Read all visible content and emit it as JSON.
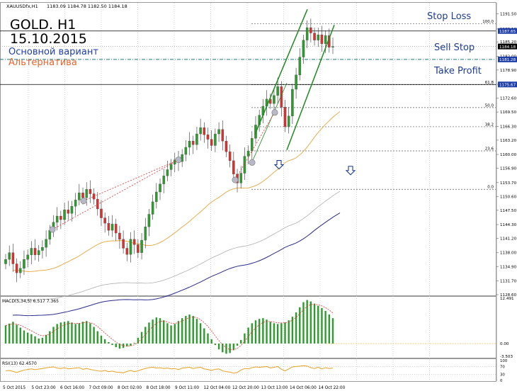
{
  "symbol_bar": {
    "symbol": "XAUUSDfx,H1",
    "ohlc": "1183.09 1184.78 1182.50 1184.18"
  },
  "overlay": {
    "title": "GOLD. H1",
    "date": "15.10.2015",
    "main_variant": "Основной вариант",
    "alternative": "Альтернатива",
    "stop_loss": "Stop Loss",
    "sell_stop": "Sell Stop",
    "take_profit": "Take Profit"
  },
  "colors": {
    "bull": "#2e9b2e",
    "bear": "#d93030",
    "channel": "#1f8a1f",
    "ma_fast": "#e8a53a",
    "ma_slow": "#2b2b8c",
    "ma_mid": "#b0b0b0",
    "main_variant": "#1f3fa8",
    "alternative": "#e8632b",
    "label_blue": "#1d3d8f",
    "macd_signal": "#e03030",
    "rsi_line": "#e8a020"
  },
  "chart_data": {
    "type": "candlestick",
    "price_axis": {
      "ylim": [
        1128.6,
        1193.0
      ],
      "ticks": [
        "1191.50",
        "1188.10",
        "1185.20",
        "1182.00",
        "1178.90",
        "1175.70",
        "1172.60",
        "1169.50",
        "1166.30",
        "1163.20",
        "1160.00",
        "1156.90",
        "1153.70",
        "1150.60",
        "1147.50",
        "1144.30",
        "1141.20",
        "1138.00",
        "1134.90",
        "1131.70",
        "1128.60"
      ],
      "markers": [
        {
          "label": "1187.65",
          "value": 1187.65
        },
        {
          "label": "1184.18",
          "value": 1184.18
        },
        {
          "label": "1181.28",
          "value": 1181.28
        },
        {
          "label": "1175.67",
          "value": 1175.67
        }
      ]
    },
    "time_axis": {
      "labels": [
        "5 Oct 2015",
        "5 Oct 23:00",
        "6 Oct 16:00",
        "7 Oct 09:00",
        "8 Oct 02:00",
        "8 Oct 18:00",
        "9 Oct 11:00",
        "12 Oct 04:00",
        "12 Oct 20:00",
        "13 Oct 13:00",
        "14 Oct 06:00",
        "14 Oct 22:00"
      ]
    },
    "closes": [
      1136.5,
      1138.0,
      1135.5,
      1133.5,
      1134.5,
      1136.5,
      1137.5,
      1139.0,
      1137.5,
      1138.5,
      1139.2,
      1141.0,
      1143.0,
      1144.8,
      1146.2,
      1145.4,
      1147.6,
      1146.8,
      1148.4,
      1149.8,
      1151.4,
      1150.3,
      1152.2,
      1151.2,
      1150.0,
      1147.8,
      1145.8,
      1144.6,
      1143.0,
      1144.4,
      1142.4,
      1141.0,
      1139.0,
      1137.6,
      1141.0,
      1139.8,
      1138.0,
      1140.8,
      1143.8,
      1146.6,
      1149.4,
      1151.6,
      1153.4,
      1155.2,
      1156.6,
      1157.8,
      1158.8,
      1158.4,
      1160.0,
      1161.6,
      1163.0,
      1162.2,
      1164.6,
      1166.0,
      1164.4,
      1163.4,
      1162.0,
      1164.6,
      1165.6,
      1163.0,
      1160.6,
      1158.6,
      1155.6,
      1153.6,
      1155.8,
      1159.6,
      1160.8,
      1163.6,
      1166.6,
      1168.8,
      1170.8,
      1172.4,
      1171.4,
      1173.2,
      1175.2,
      1170.6,
      1166.2,
      1168.6,
      1174.6,
      1177.8,
      1181.8,
      1185.6,
      1188.4,
      1187.2,
      1185.6,
      1186.8,
      1184.8,
      1186.6,
      1184.0,
      1184.18
    ],
    "fibonacci": [
      {
        "label": "100.0",
        "value": 1189.3
      },
      {
        "label": "61.8",
        "value": 1175.6
      },
      {
        "label": "50.0",
        "value": 1170.5
      },
      {
        "label": "38.2",
        "value": 1166.2
      },
      {
        "label": "23.6",
        "value": 1160.8
      },
      {
        "label": "0.0",
        "value": 1152.2
      }
    ],
    "macd": {
      "label": "MACD(5,34,5) 6.517 7.365",
      "ticks": [
        "12.491",
        "0.00",
        "-3.503"
      ],
      "ylim": [
        -3.503,
        12.491
      ],
      "values": [
        5,
        5.5,
        6,
        5.2,
        4.4,
        3.6,
        3,
        2.6,
        2,
        1.4,
        1.6,
        2.4,
        3.4,
        4.6,
        5.4,
        5.8,
        6,
        6.2,
        5.8,
        5.4,
        5.6,
        6,
        6.2,
        5.6,
        4.6,
        3.4,
        2.2,
        1.2,
        0.4,
        -0.4,
        -1,
        -1.4,
        -1.2,
        -0.8,
        -0.6,
        0.2,
        1.6,
        3.2,
        4.6,
        5.8,
        6.6,
        7.2,
        7,
        6.4,
        5.6,
        5,
        5.4,
        6.2,
        7,
        7.6,
        8,
        7.6,
        6.8,
        5.6,
        4.2,
        2.8,
        1.2,
        -0.4,
        -1.6,
        -2.4,
        -2.8,
        -2.6,
        -1.8,
        -0.6,
        1,
        2.8,
        4.4,
        5.6,
        6.4,
        6.8,
        7,
        6.6,
        6,
        5.6,
        5.4,
        5.6,
        5.8,
        6.4,
        7.4,
        8.6,
        10,
        11.4,
        12,
        11.6,
        11,
        10.4,
        9.8,
        9,
        8,
        7
      ]
    },
    "rsi": {
      "label": "RSI(13) 62.4570",
      "ticks": [
        "100",
        "70",
        "30",
        "0"
      ],
      "ylim": [
        0,
        100
      ],
      "values": [
        48,
        50,
        45,
        40,
        46,
        52,
        55,
        58,
        54,
        57,
        60,
        63,
        66,
        68,
        62,
        60,
        64,
        58,
        60,
        62,
        64,
        56,
        60,
        55,
        52,
        48,
        46,
        50,
        44,
        47,
        42,
        40,
        38,
        45,
        50,
        44,
        48,
        55,
        60,
        64,
        66,
        62,
        64,
        60,
        62,
        58,
        60,
        54,
        62,
        64,
        66,
        60,
        64,
        66,
        58,
        55,
        50,
        56,
        58,
        48,
        44,
        42,
        36,
        40,
        52,
        60,
        58,
        64,
        68,
        66,
        68,
        70,
        62,
        66,
        70,
        56,
        48,
        58,
        68,
        70,
        72,
        74,
        72,
        64,
        60,
        66,
        58,
        64,
        60,
        62
      ]
    }
  }
}
